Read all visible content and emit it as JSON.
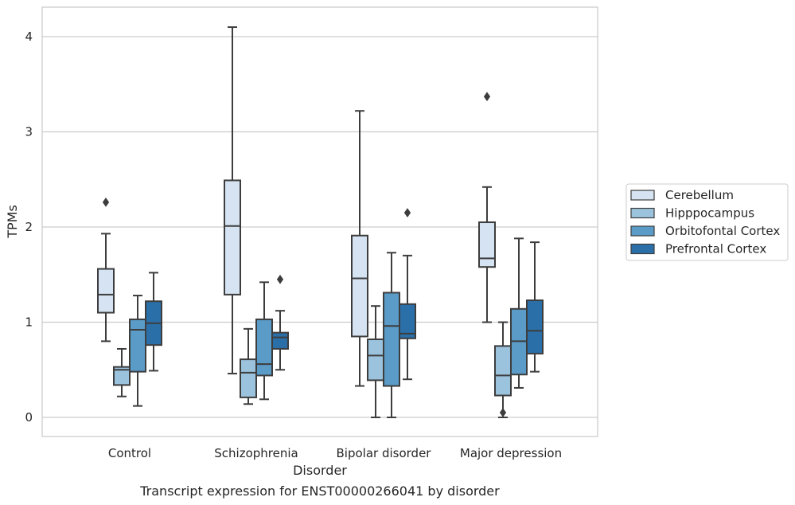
{
  "chart_data": {
    "type": "box",
    "caption": "Transcript expression for ENST00000266041 by disorder",
    "xlabel": "Disorder",
    "ylabel": "TPMs",
    "ylim": [
      -0.2,
      4.3
    ],
    "yticks": [
      0,
      1,
      2,
      3,
      4
    ],
    "grid": "horizontal",
    "legend_position": "right",
    "categories": [
      "Control",
      "Schizophrenia",
      "Bipolar disorder",
      "Major depression"
    ],
    "series": [
      {
        "name": "Cerebellum",
        "color": "#d5e3f2",
        "boxes": [
          {
            "whisker_low": 0.8,
            "q1": 1.1,
            "median": 1.29,
            "q3": 1.56,
            "whisker_high": 1.93,
            "outliers": [
              2.26
            ]
          },
          {
            "whisker_low": 0.46,
            "q1": 1.29,
            "median": 2.01,
            "q3": 2.49,
            "whisker_high": 4.1,
            "outliers": []
          },
          {
            "whisker_low": 0.33,
            "q1": 0.85,
            "median": 1.46,
            "q3": 1.91,
            "whisker_high": 3.22,
            "outliers": []
          },
          {
            "whisker_low": 1.0,
            "q1": 1.58,
            "median": 1.67,
            "q3": 2.05,
            "whisker_high": 2.42,
            "outliers": [
              3.37
            ]
          }
        ]
      },
      {
        "name": "Hipppocampus",
        "color": "#9bc3dd",
        "boxes": [
          {
            "whisker_low": 0.22,
            "q1": 0.34,
            "median": 0.5,
            "q3": 0.53,
            "whisker_high": 0.72,
            "outliers": []
          },
          {
            "whisker_low": 0.14,
            "q1": 0.21,
            "median": 0.47,
            "q3": 0.61,
            "whisker_high": 0.93,
            "outliers": []
          },
          {
            "whisker_low": 0.0,
            "q1": 0.39,
            "median": 0.65,
            "q3": 0.82,
            "whisker_high": 1.17,
            "outliers": []
          },
          {
            "whisker_low": 0.0,
            "q1": 0.23,
            "median": 0.44,
            "q3": 0.75,
            "whisker_high": 1.0,
            "outliers": [
              0.05
            ]
          }
        ]
      },
      {
        "name": "Orbitofontal Cortex",
        "color": "#5a9bc8",
        "boxes": [
          {
            "whisker_low": 0.12,
            "q1": 0.48,
            "median": 0.92,
            "q3": 1.03,
            "whisker_high": 1.28,
            "outliers": []
          },
          {
            "whisker_low": 0.19,
            "q1": 0.44,
            "median": 0.56,
            "q3": 1.03,
            "whisker_high": 1.42,
            "outliers": []
          },
          {
            "whisker_low": 0.0,
            "q1": 0.33,
            "median": 0.96,
            "q3": 1.31,
            "whisker_high": 1.73,
            "outliers": []
          },
          {
            "whisker_low": 0.31,
            "q1": 0.45,
            "median": 0.8,
            "q3": 1.14,
            "whisker_high": 1.88,
            "outliers": []
          }
        ]
      },
      {
        "name": "Prefrontal Cortex",
        "color": "#2b6fa9",
        "boxes": [
          {
            "whisker_low": 0.49,
            "q1": 0.76,
            "median": 0.99,
            "q3": 1.22,
            "whisker_high": 1.52,
            "outliers": []
          },
          {
            "whisker_low": 0.5,
            "q1": 0.72,
            "median": 0.84,
            "q3": 0.89,
            "whisker_high": 1.12,
            "outliers": [
              1.45
            ]
          },
          {
            "whisker_low": 0.4,
            "q1": 0.83,
            "median": 0.88,
            "q3": 1.19,
            "whisker_high": 1.7,
            "outliers": [
              2.15
            ]
          },
          {
            "whisker_low": 0.48,
            "q1": 0.67,
            "median": 0.91,
            "q3": 1.23,
            "whisker_high": 1.84,
            "outliers": []
          }
        ]
      }
    ]
  }
}
